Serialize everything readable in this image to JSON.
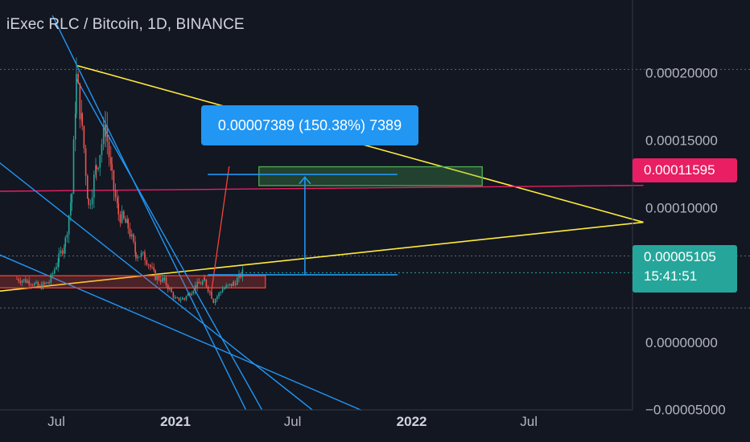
{
  "header": {
    "title": "iExec RLC / Bitcoin, 1D, BINANCE"
  },
  "measure": {
    "label": "0.00007389 (150.38%) 7389"
  },
  "price_tags": {
    "red_level": "0.00011595",
    "current_price": "0.00005105",
    "countdown": "15:41:51"
  },
  "colors": {
    "background": "#131722",
    "trendline_yellow": "#ffeb3b",
    "trendline_blue": "#2196f3",
    "resistance_red": "#e91e63",
    "candle_up": "#26a69a",
    "candle_down": "#ef5350",
    "target_box_green": "#4caf50",
    "support_box_red": "#f44336"
  },
  "chart_data": {
    "type": "candlestick",
    "title": "iExec RLC / Bitcoin, 1D, BINANCE",
    "x_tick_labels": [
      "Jul",
      "2021",
      "Jul",
      "2022",
      "Jul"
    ],
    "y_tick_labels": [
      "0.00020000",
      "0.00015000",
      "0.00010000",
      "0.00005000",
      "0.00000000",
      "−0.00005000"
    ],
    "y_ticks": [
      0.0002,
      0.00015,
      0.0001,
      5e-05,
      0.0,
      -5e-05
    ],
    "ylim": [
      -5.08e-05,
      0.0002416
    ],
    "price_series": [
      [
        "2020-05-01",
        4.65e-05
      ],
      [
        "2020-05-20",
        4.45e-05
      ],
      [
        "2020-06-05",
        4.05e-05
      ],
      [
        "2020-06-20",
        4.4e-05
      ],
      [
        "2020-07-05",
        6.2e-05
      ],
      [
        "2020-07-15",
        7.5e-05
      ],
      [
        "2020-07-25",
        0.00011
      ],
      [
        "2020-08-01",
        0.000195
      ],
      [
        "2020-08-10",
        0.00016
      ],
      [
        "2020-08-20",
        0.0001
      ],
      [
        "2020-09-01",
        0.00013
      ],
      [
        "2020-09-15",
        0.00016
      ],
      [
        "2020-09-25",
        0.00012
      ],
      [
        "2020-10-05",
        9.5e-05
      ],
      [
        "2020-10-20",
        8.5e-05
      ],
      [
        "2020-11-01",
        6.5e-05
      ],
      [
        "2020-11-15",
        6.3e-05
      ],
      [
        "2020-12-01",
        4.8e-05
      ],
      [
        "2020-12-15",
        4.5e-05
      ],
      [
        "2021-01-01",
        3.1e-05
      ],
      [
        "2021-01-15",
        3.2e-05
      ],
      [
        "2021-02-01",
        4.1e-05
      ],
      [
        "2021-02-15",
        4.5e-05
      ],
      [
        "2021-03-01",
        3e-05
      ],
      [
        "2021-03-15",
        3.9e-05
      ],
      [
        "2021-04-01",
        4.3e-05
      ],
      [
        "2021-04-15",
        5.1e-05
      ]
    ],
    "annotations": {
      "red_horizontal_level": 0.00011595,
      "current_price": 5.105e-05,
      "measure_change_abs": 7.389e-05,
      "measure_change_pct": 150.38,
      "measure_ticks": 7389,
      "grid": false,
      "legend": "none"
    }
  }
}
